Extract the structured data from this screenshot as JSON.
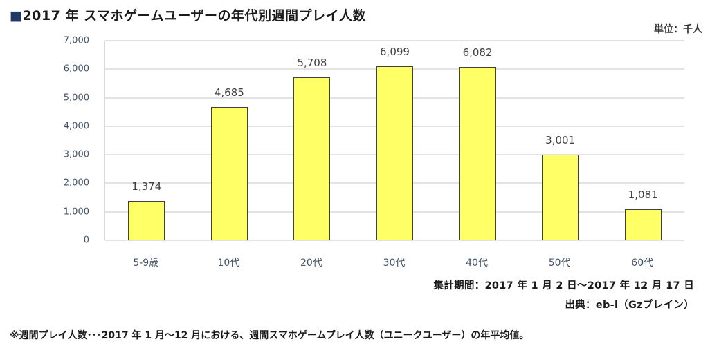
{
  "title_marker": "■",
  "title": "2017 年  スマホゲームユーザーの年代別週間プレイ人数",
  "unit": "単位：千人",
  "period": "集計期間：2017 年 1 月 2 日～2017 年 12 月 17 日",
  "source": "出典：eb-i（Gzブレイン）",
  "note": "※週間プレイ人数･･･2017 年 1 月～12 月における、週間スマホゲームプレイ人数（ユニークユーザー）の年平均値。",
  "y_ticks": [
    "0",
    "1,000",
    "2,000",
    "3,000",
    "4,000",
    "5,000",
    "6,000",
    "7,000"
  ],
  "bars": [
    {
      "category": "5-9歳",
      "value": 1374,
      "label": "1,374"
    },
    {
      "category": "10代",
      "value": 4685,
      "label": "4,685"
    },
    {
      "category": "20代",
      "value": 5708,
      "label": "5,708"
    },
    {
      "category": "30代",
      "value": 6099,
      "label": "6,099"
    },
    {
      "category": "40代",
      "value": 6082,
      "label": "6,082"
    },
    {
      "category": "50代",
      "value": 3001,
      "label": "3,001"
    },
    {
      "category": "60代",
      "value": 1081,
      "label": "1,081"
    }
  ],
  "colors": {
    "bar": "#ffff66",
    "bar_border": "#404040",
    "grid": "#e3e3e3",
    "axis_text": "#44546a"
  },
  "chart_data": {
    "type": "bar",
    "title": "2017 年 スマホゲームユーザーの年代別週間プレイ人数",
    "categories": [
      "5-9歳",
      "10代",
      "20代",
      "30代",
      "40代",
      "50代",
      "60代"
    ],
    "values": [
      1374,
      4685,
      5708,
      6099,
      6082,
      3001,
      1081
    ],
    "xlabel": "",
    "ylabel": "単位：千人",
    "ylim": [
      0,
      7000
    ],
    "yticks": [
      0,
      1000,
      2000,
      3000,
      4000,
      5000,
      6000,
      7000
    ],
    "grid": true,
    "legend": "none",
    "data_labels": true
  }
}
